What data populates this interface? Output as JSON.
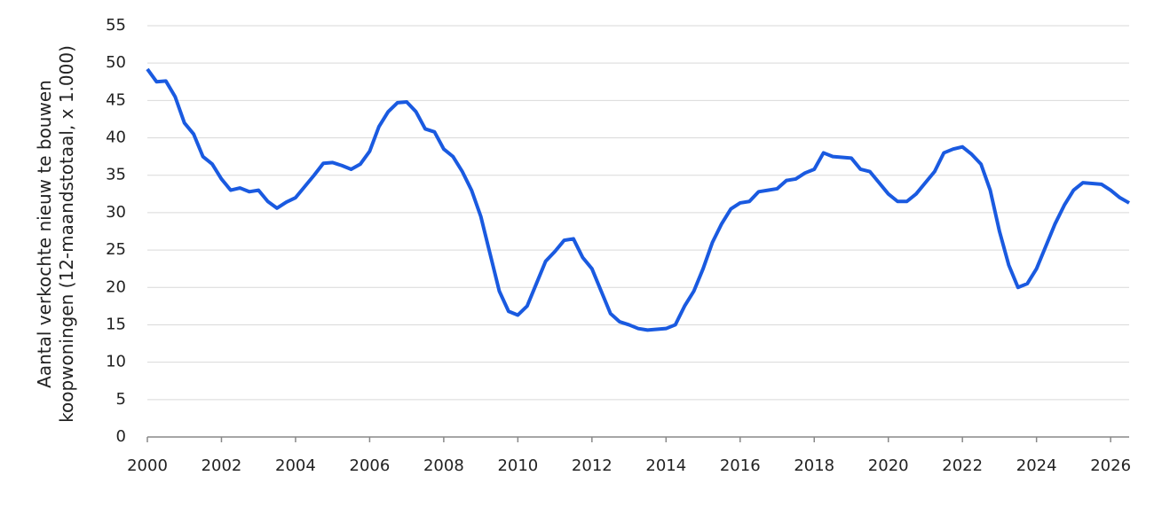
{
  "chart_data": {
    "type": "line",
    "y_label": "Aantal verkochte nieuw te bouwen koopwoningen (12-maandstotaal, x 1.000)",
    "xlim": [
      2000,
      2026.5
    ],
    "xticks": [
      2000,
      2002,
      2004,
      2006,
      2008,
      2010,
      2012,
      2014,
      2016,
      2018,
      2020,
      2022,
      2024,
      2026
    ],
    "ylim": [
      0,
      55
    ],
    "yticks": [
      0,
      5,
      10,
      15,
      20,
      25,
      30,
      35,
      40,
      45,
      50,
      55
    ],
    "grid": true,
    "series": [
      {
        "color": "#1a5ae0",
        "x": [
          2000,
          2000.25,
          2000.5,
          2000.75,
          2001,
          2001.25,
          2001.5,
          2001.75,
          2002,
          2002.25,
          2002.5,
          2002.75,
          2003,
          2003.25,
          2003.5,
          2003.75,
          2004,
          2004.25,
          2004.5,
          2004.75,
          2005,
          2005.25,
          2005.5,
          2005.75,
          2006,
          2006.25,
          2006.5,
          2006.75,
          2007,
          2007.25,
          2007.5,
          2007.75,
          2008,
          2008.25,
          2008.5,
          2008.75,
          2009,
          2009.25,
          2009.5,
          2009.75,
          2010,
          2010.25,
          2010.5,
          2010.75,
          2011,
          2011.25,
          2011.5,
          2011.75,
          2012,
          2012.25,
          2012.5,
          2012.75,
          2013,
          2013.25,
          2013.5,
          2013.75,
          2014,
          2014.25,
          2014.5,
          2014.75,
          2015,
          2015.25,
          2015.5,
          2015.75,
          2016,
          2016.25,
          2016.5,
          2016.75,
          2017,
          2017.25,
          2017.5,
          2017.75,
          2018,
          2018.25,
          2018.5,
          2018.75,
          2019,
          2019.25,
          2019.5,
          2019.75,
          2020,
          2020.25,
          2020.5,
          2020.75,
          2021,
          2021.25,
          2021.5,
          2021.75,
          2022,
          2022.25,
          2022.5,
          2022.75,
          2023,
          2023.25,
          2023.5,
          2023.75,
          2024,
          2024.25,
          2024.5,
          2024.75,
          2025,
          2025.25,
          2025.5,
          2025.75,
          2026,
          2026.25,
          2026.5
        ],
        "values": [
          49.2,
          47.5,
          47.6,
          45.5,
          42,
          40.5,
          37.5,
          36.5,
          34.5,
          33,
          33.3,
          32.8,
          33,
          31.5,
          30.6,
          31.4,
          32,
          33.5,
          35,
          36.6,
          36.7,
          36.3,
          35.8,
          36.5,
          38.2,
          41.5,
          43.5,
          44.7,
          44.8,
          43.5,
          41.2,
          40.8,
          38.5,
          37.5,
          35.5,
          33,
          29.5,
          24.5,
          19.5,
          16.8,
          16.3,
          17.5,
          20.5,
          23.5,
          24.8,
          26.3,
          26.5,
          24,
          22.5,
          19.5,
          16.5,
          15.4,
          15,
          14.5,
          14.3,
          14.4,
          14.5,
          15,
          17.5,
          19.5,
          22.5,
          26,
          28.5,
          30.5,
          31.3,
          31.5,
          32.8,
          33,
          33.2,
          34.3,
          34.5,
          35.3,
          35.8,
          38,
          37.5,
          37.4,
          37.3,
          35.8,
          35.5,
          34,
          32.5,
          31.5,
          31.5,
          32.5,
          34,
          35.5,
          38,
          38.5,
          38.8,
          37.8,
          36.5,
          33,
          27.5,
          23,
          20,
          20.5,
          22.5,
          25.5,
          28.5,
          31,
          33,
          34,
          33.9,
          33.8,
          33,
          32,
          31.3
        ]
      }
    ]
  }
}
